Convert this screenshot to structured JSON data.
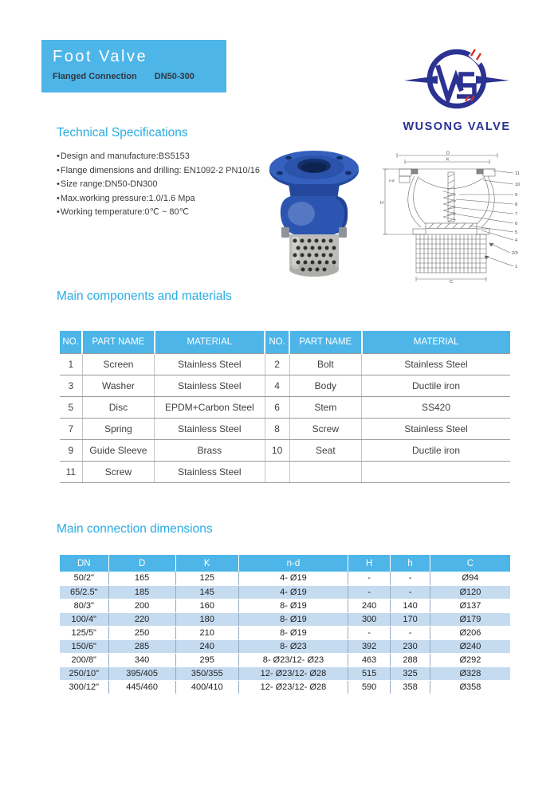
{
  "banner": {
    "title": "Foot Valve",
    "connection": "Flanged Connection",
    "size_range": "DN50-300"
  },
  "logo": {
    "company": "WUSONG VALVE"
  },
  "tech_specs": {
    "heading": "Technical Specifications",
    "bullets": [
      "Design and manufacture:BS5153",
      "Flange dimensions and drilling: EN1092-2 PN10/16",
      "Size range:DN50-DN300",
      "Max.working pressure:1.0/1.6 Mpa",
      "Working temperature:0℃ ~ 80℃"
    ]
  },
  "components": {
    "heading": "Main components and materials",
    "headers": [
      "NO.",
      "PART NAME",
      "MATERIAL",
      "NO.",
      "PART NAME",
      "MATERIAL"
    ],
    "rows": [
      [
        "1",
        "Screen",
        "Stainless Steel",
        "2",
        "Bolt",
        "Stainless Steel"
      ],
      [
        "3",
        "Washer",
        "Stainless Steel",
        "4",
        "Body",
        "Ductile iron"
      ],
      [
        "5",
        "Disc",
        "EPDM+Carbon Steel",
        "6",
        "Stem",
        "SS420"
      ],
      [
        "7",
        "Spring",
        "Stainless Steel",
        "8",
        "Screw",
        "Stainless Steel"
      ],
      [
        "9",
        "Guide Sleeve",
        "Brass",
        "10",
        "Seat",
        "Ductile iron"
      ],
      [
        "11",
        "Screw",
        "Stainless Steel",
        "",
        "",
        ""
      ]
    ]
  },
  "dimensions": {
    "heading": "Main connection dimensions",
    "headers": [
      "DN",
      "D",
      "K",
      "n-d",
      "H",
      "h",
      "C"
    ],
    "rows": [
      [
        "50/2\"",
        "165",
        "125",
        "4- Ø19",
        "-",
        "-",
        "Ø94"
      ],
      [
        "65/2.5\"",
        "185",
        "145",
        "4- Ø19",
        "-",
        "-",
        "Ø120"
      ],
      [
        "80/3\"",
        "200",
        "160",
        "8- Ø19",
        "240",
        "140",
        "Ø137"
      ],
      [
        "100/4\"",
        "220",
        "180",
        "8- Ø19",
        "300",
        "170",
        "Ø179"
      ],
      [
        "125/5\"",
        "250",
        "210",
        "8- Ø19",
        "-",
        "-",
        "Ø206"
      ],
      [
        "150/6\"",
        "285",
        "240",
        "8- Ø23",
        "392",
        "230",
        "Ø240"
      ],
      [
        "200/8\"",
        "340",
        "295",
        "8- Ø23/12- Ø23",
        "463",
        "288",
        "Ø292"
      ],
      [
        "250/10\"",
        "395/405",
        "350/355",
        "12- Ø23/12- Ø28",
        "515",
        "325",
        "Ø328"
      ],
      [
        "300/12\"",
        "445/460",
        "400/410",
        "12- Ø23/12- Ø28",
        "590",
        "358",
        "Ø358"
      ]
    ]
  },
  "drawing": {
    "labels": {
      "d": "D",
      "k": "K",
      "h_total": "H",
      "nd": "n-d",
      "c": "C"
    },
    "callouts": [
      "11",
      "10",
      "9",
      "8",
      "7",
      "6",
      "5",
      "4",
      "2/3",
      "1"
    ]
  },
  "colors": {
    "accent_blue": "#4db5e8",
    "heading_cyan": "#2aace4",
    "alt_row_blue": "#c5dbf0",
    "logo_navy": "#2b3292",
    "logo_red": "#d22c2c"
  }
}
